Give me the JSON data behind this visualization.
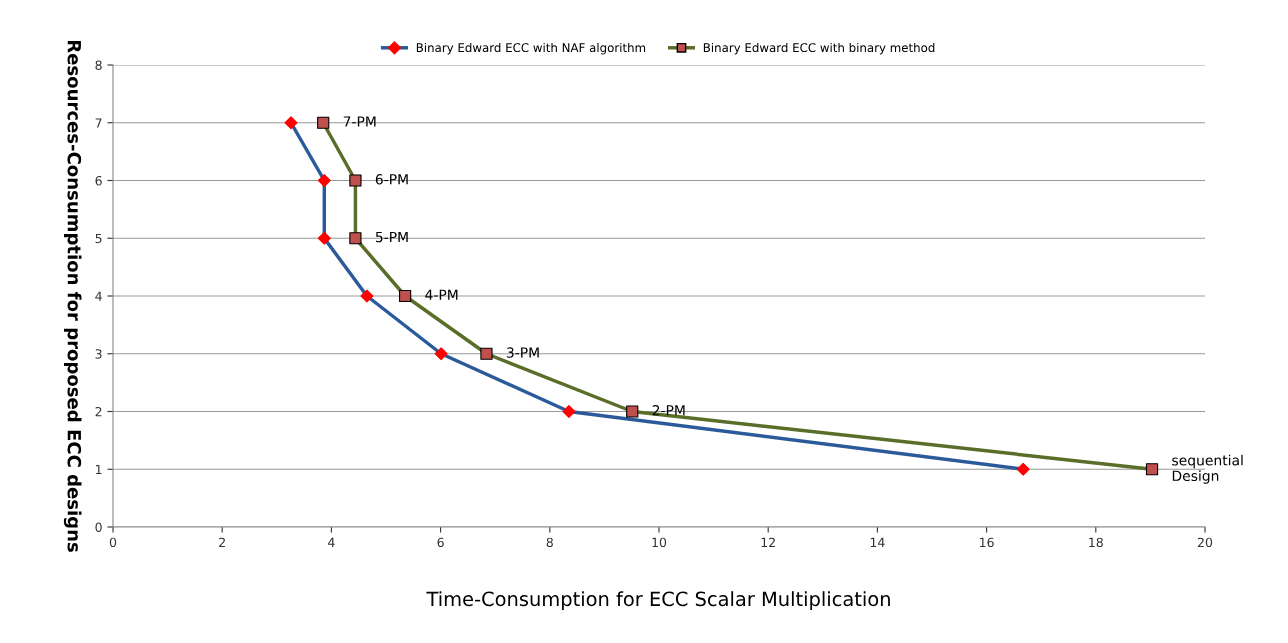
{
  "chart_data": {
    "type": "line",
    "xlabel": "Time-Consumption for ECC Scalar Multiplication",
    "ylabel": "Resources-Consumption for proposed ECC designs",
    "xlim": [
      0,
      20
    ],
    "xticks": [
      0,
      2,
      4,
      6,
      8,
      10,
      12,
      14,
      16,
      18,
      20
    ],
    "ylim": [
      0,
      8
    ],
    "yticks": [
      0,
      1,
      2,
      3,
      4,
      5,
      6,
      7,
      8
    ],
    "grid": "y",
    "legend": "top",
    "series": [
      {
        "name": "Binary Edward ECC with NAF algorithm",
        "color": "#2a5a9a",
        "marker": "diamond",
        "colors": [
          "#ff0000",
          "#ff0000",
          "#ff0000",
          "#ff0000",
          "#ff0000",
          "#ff0000",
          "#ff0000"
        ],
        "x": [
          3.26,
          3.87,
          3.87,
          4.65,
          6.01,
          8.35,
          16.67
        ],
        "values": [
          7,
          6,
          5,
          4,
          3,
          2,
          1
        ]
      },
      {
        "name": "Binary Edward ECC with binary method",
        "color": "#5a6e2a",
        "marker": "square",
        "colors": [
          "#c0504d",
          "#c0504d",
          "#c0504d",
          "#c0504d",
          "#c0504d",
          "#c0504d",
          "#c0504d"
        ],
        "x": [
          3.85,
          4.44,
          4.44,
          5.35,
          6.84,
          9.51,
          19.03
        ],
        "values": [
          7,
          6,
          5,
          4,
          3,
          2,
          1
        ]
      }
    ],
    "annotations": [
      {
        "text": "7-PM",
        "x": 3.85,
        "y": 7
      },
      {
        "text": "6-PM",
        "x": 4.44,
        "y": 6
      },
      {
        "text": "5-PM",
        "x": 4.44,
        "y": 5
      },
      {
        "text": "4-PM",
        "x": 5.35,
        "y": 4
      },
      {
        "text": "3-PM",
        "x": 6.84,
        "y": 3
      },
      {
        "text": "2-PM",
        "x": 9.51,
        "y": 2
      },
      {
        "text": "sequential\nDesign",
        "x": 19.03,
        "y": 1
      }
    ]
  }
}
